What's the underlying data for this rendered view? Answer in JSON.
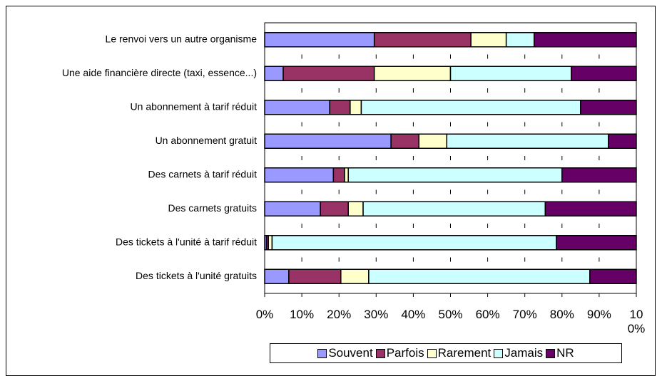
{
  "chart_data": {
    "type": "stacked-bar-horizontal",
    "categories": [
      "Le renvoi vers un autre organisme",
      "Une aide financière directe (taxi, essence...)",
      "Un abonnement à tarif réduit",
      "Un abonnement gratuit",
      "Des carnets à tarif réduit",
      "Des carnets gratuits",
      "Des tickets à l'unité à tarif réduit",
      "Des tickets à l'unité gratuits"
    ],
    "series": [
      {
        "name": "Souvent",
        "color": "#9999ff",
        "values": [
          29.5,
          5,
          17.5,
          34,
          18.5,
          15,
          0.5,
          6.5
        ]
      },
      {
        "name": "Parfois",
        "color": "#993366",
        "values": [
          26,
          24.5,
          5.5,
          7.5,
          3,
          7.5,
          0.5,
          14
        ]
      },
      {
        "name": "Rarement",
        "color": "#ffffcc",
        "values": [
          9.5,
          20.5,
          3,
          7.5,
          1,
          4,
          1,
          7.5
        ]
      },
      {
        "name": "Jamais",
        "color": "#ccffff",
        "values": [
          7.5,
          32.5,
          59,
          43.5,
          57.5,
          49,
          76.5,
          59.5
        ]
      },
      {
        "name": "NR",
        "color": "#660066",
        "values": [
          27.5,
          17.5,
          15,
          7.5,
          20,
          24.5,
          21.5,
          12.5
        ]
      }
    ],
    "xlim": [
      0,
      100
    ],
    "xticks": [
      {
        "value": 0,
        "label": "0%"
      },
      {
        "value": 10,
        "label": "10%"
      },
      {
        "value": 20,
        "label": "20%"
      },
      {
        "value": 30,
        "label": "30%"
      },
      {
        "value": 40,
        "label": "40%"
      },
      {
        "value": 50,
        "label": "50%"
      },
      {
        "value": 60,
        "label": "60%"
      },
      {
        "value": 70,
        "label": "70%"
      },
      {
        "value": 80,
        "label": "80%"
      },
      {
        "value": 90,
        "label": "90%"
      },
      {
        "value": 100,
        "label": "100%"
      }
    ],
    "legend": "bottom"
  }
}
